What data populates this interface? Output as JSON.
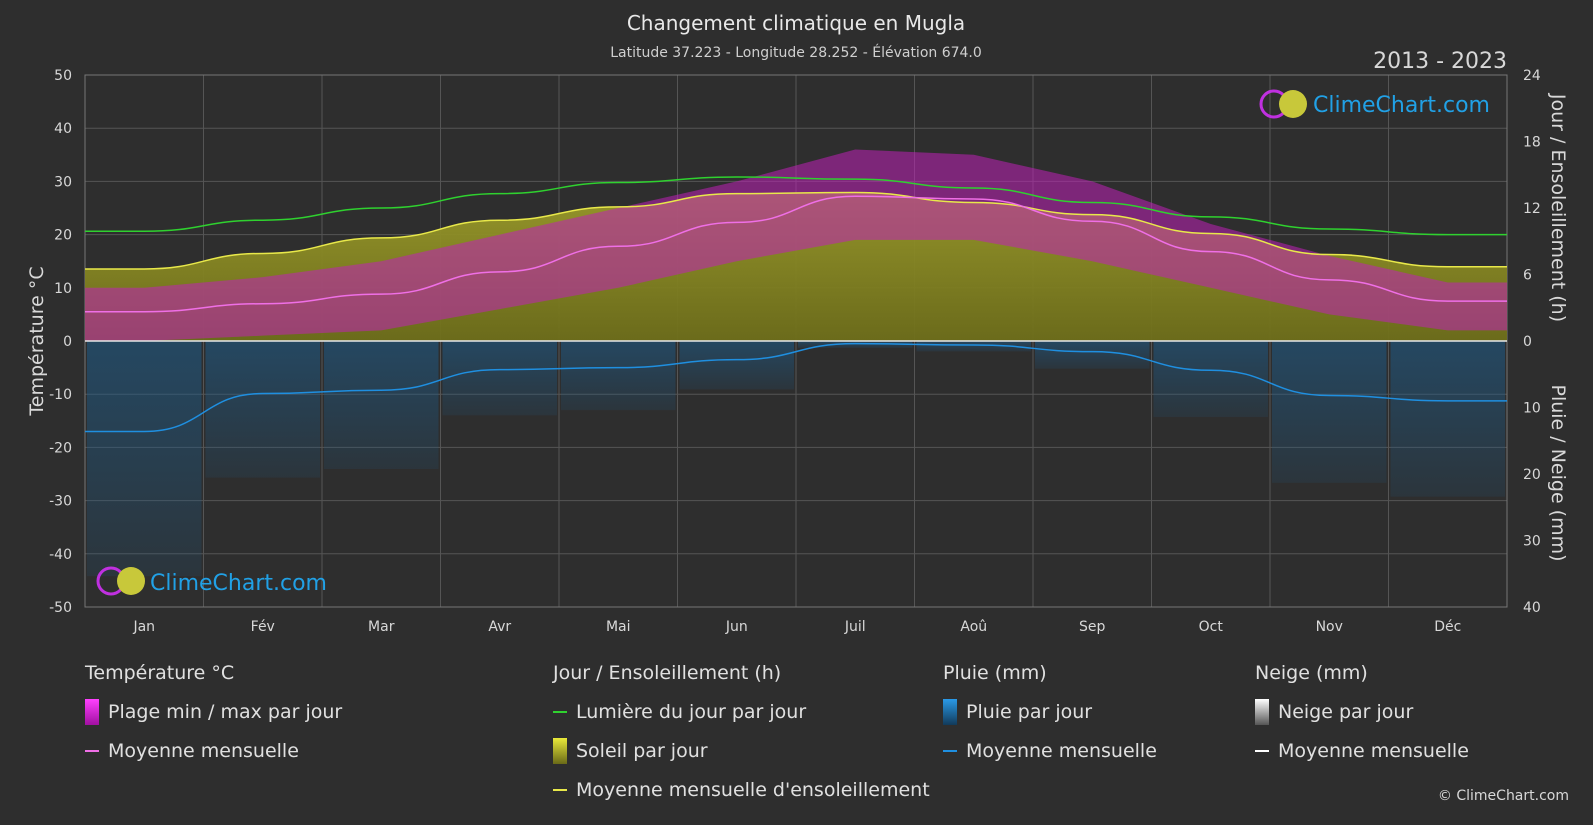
{
  "header": {
    "title": "Changement climatique en Mugla",
    "subtitle": "Latitude 37.223 - Longitude 28.252 - Élévation 674.0",
    "period": "2013 - 2023"
  },
  "brand": {
    "logo_text": "ClimeChart.com",
    "copyright": "© ClimeChart.com"
  },
  "colors": {
    "background": "#2e2e2e",
    "daylight": "#2fd12f",
    "sunshine_avg": "#e8e84a",
    "sunshine_fill": "#8a8a1f",
    "temp_avg": "#ef6fe6",
    "temp_range": "#d020c8",
    "rain": "#1f8fe0",
    "snow": "#ffffff",
    "logo_blue": "#21a1e6"
  },
  "chart_data": {
    "type": "line",
    "months": [
      "Jan",
      "Fév",
      "Mar",
      "Avr",
      "Mai",
      "Jun",
      "Juil",
      "Aoû",
      "Sep",
      "Oct",
      "Nov",
      "Déc"
    ],
    "axes": {
      "left": {
        "label": "Température °C",
        "min": -50,
        "max": 50,
        "ticks": [
          50,
          40,
          30,
          20,
          10,
          0,
          -10,
          -20,
          -30,
          -40,
          -50
        ]
      },
      "right_top": {
        "label": "Jour / Ensoleillement (h)",
        "min": 0,
        "max": 24,
        "ticks": [
          24,
          18,
          12,
          6,
          0
        ]
      },
      "right_bottom": {
        "label": "Pluie / Neige (mm)",
        "min": 0,
        "max": 40,
        "ticks": [
          10,
          20,
          30,
          40
        ]
      }
    },
    "series": [
      {
        "name": "Lumière du jour par jour",
        "unit": "h",
        "values": [
          9.9,
          10.9,
          12.0,
          13.3,
          14.3,
          14.8,
          14.6,
          13.8,
          12.5,
          11.2,
          10.1,
          9.6
        ]
      },
      {
        "name": "Moyenne mensuelle d'ensoleillement",
        "unit": "h",
        "values": [
          6.5,
          7.9,
          9.3,
          10.9,
          12.1,
          13.3,
          13.4,
          12.5,
          11.4,
          9.7,
          7.8,
          6.7
        ]
      },
      {
        "name": "Température moyenne mensuelle",
        "unit": "°C",
        "values": [
          5.5,
          7.0,
          8.8,
          13.0,
          17.8,
          22.3,
          27.2,
          26.7,
          22.5,
          16.8,
          11.5,
          7.5
        ]
      },
      {
        "name": "Pluie moyenne mensuelle",
        "unit": "mm",
        "values": [
          13.6,
          7.9,
          7.4,
          4.3,
          4.0,
          2.8,
          0.4,
          0.6,
          1.6,
          4.4,
          8.2,
          9.0
        ]
      },
      {
        "name": "Neige moyenne mensuelle",
        "unit": "mm",
        "values": [
          0,
          0,
          0,
          0,
          0,
          0,
          0,
          0,
          0,
          0,
          0,
          0
        ]
      }
    ],
    "temp_range_daily": {
      "max": [
        10,
        12,
        15,
        20,
        25,
        30,
        36,
        35,
        30,
        22,
        16,
        11
      ],
      "min": [
        0,
        1,
        2,
        6,
        10,
        15,
        19,
        19,
        15,
        10,
        5,
        2
      ]
    },
    "grid": true
  },
  "legend": {
    "temperature": {
      "title": "Température °C",
      "items": [
        "Plage min / max par jour",
        "Moyenne mensuelle"
      ]
    },
    "sun": {
      "title": "Jour / Ensoleillement (h)",
      "items": [
        "Lumière du jour par jour",
        "Soleil par jour",
        "Moyenne mensuelle d'ensoleillement"
      ]
    },
    "rain": {
      "title": "Pluie (mm)",
      "items": [
        "Pluie par jour",
        "Moyenne mensuelle"
      ]
    },
    "snow": {
      "title": "Neige (mm)",
      "items": [
        "Neige par jour",
        "Moyenne mensuelle"
      ]
    }
  }
}
